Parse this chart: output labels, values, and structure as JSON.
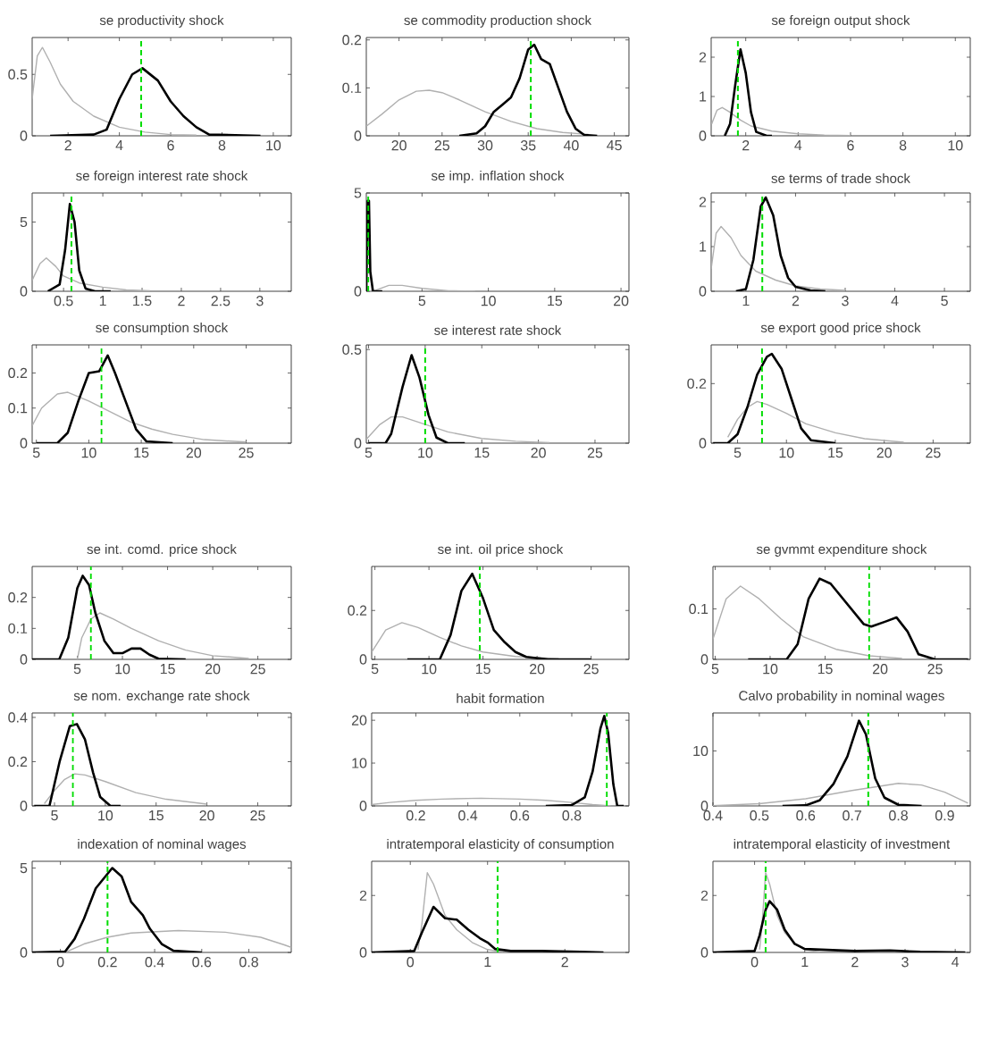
{
  "chart_data": [
    {
      "type": "line",
      "title": "se productivity shock",
      "xlim": [
        0.6,
        10.7
      ],
      "ylim": [
        0,
        0.8
      ],
      "xticks": [
        2,
        4,
        6,
        8,
        10
      ],
      "yticks": [
        0,
        0.5
      ],
      "series": [
        {
          "color": "#b0b0b0",
          "x": [
            0.6,
            0.8,
            1.0,
            1.3,
            1.7,
            2.2,
            3,
            4,
            5,
            6,
            7
          ],
          "values": [
            0.3,
            0.65,
            0.72,
            0.6,
            0.42,
            0.28,
            0.16,
            0.07,
            0.03,
            0.01,
            0.005
          ]
        },
        {
          "color": "#000000",
          "x": [
            1.3,
            3,
            3.5,
            4,
            4.5,
            4.9,
            5.5,
            6,
            6.5,
            7,
            7.5,
            9.5
          ],
          "values": [
            0,
            0.01,
            0.05,
            0.3,
            0.5,
            0.55,
            0.45,
            0.28,
            0.16,
            0.07,
            0.01,
            0
          ]
        }
      ],
      "ref_lines": [
        {
          "axis": "x",
          "value": 4.85,
          "color": "#00dd00",
          "line_style": "dashed"
        }
      ]
    },
    {
      "type": "line",
      "title": "se commodity production shock",
      "xlim": [
        16.2,
        46.7
      ],
      "ylim": [
        0,
        0.205
      ],
      "xticks": [
        20,
        25,
        30,
        35,
        40,
        45
      ],
      "yticks": [
        0,
        0.1,
        0.2
      ],
      "series": [
        {
          "color": "#b0b0b0",
          "x": [
            16.2,
            18,
            20,
            22,
            23.5,
            25,
            27,
            30,
            33,
            36,
            39,
            42
          ],
          "values": [
            0.02,
            0.045,
            0.075,
            0.093,
            0.095,
            0.09,
            0.075,
            0.05,
            0.03,
            0.015,
            0.007,
            0.003
          ]
        },
        {
          "color": "#000000",
          "x": [
            27,
            29,
            30,
            31,
            32,
            33,
            34,
            35,
            35.7,
            36.5,
            37.5,
            38.5,
            39.5,
            40.5,
            41.5,
            43
          ],
          "values": [
            0,
            0.005,
            0.02,
            0.05,
            0.065,
            0.08,
            0.12,
            0.18,
            0.19,
            0.16,
            0.15,
            0.1,
            0.05,
            0.015,
            0.002,
            0
          ]
        }
      ],
      "ref_lines": [
        {
          "axis": "x",
          "value": 35.3,
          "color": "#00dd00",
          "line_style": "dashed"
        }
      ]
    },
    {
      "type": "line",
      "title": "se foreign output shock",
      "xlim": [
        0.68,
        10.57
      ],
      "ylim": [
        0,
        2.5
      ],
      "xticks": [
        2,
        4,
        6,
        8,
        10
      ],
      "yticks": [
        0,
        1,
        2
      ],
      "series": [
        {
          "color": "#b0b0b0",
          "x": [
            0.7,
            0.9,
            1.1,
            1.4,
            1.8,
            2.2,
            3,
            4,
            5,
            6
          ],
          "values": [
            0.3,
            0.65,
            0.72,
            0.6,
            0.4,
            0.25,
            0.12,
            0.05,
            0.02,
            0.005
          ]
        },
        {
          "color": "#000000",
          "x": [
            1.2,
            1.4,
            1.6,
            1.8,
            2.0,
            2.2,
            2.4,
            2.8,
            3
          ],
          "values": [
            0,
            0.3,
            1.3,
            2.2,
            1.6,
            0.6,
            0.1,
            0,
            0
          ]
        }
      ],
      "ref_lines": [
        {
          "axis": "x",
          "value": 1.7,
          "color": "#00dd00",
          "line_style": "dashed"
        }
      ]
    },
    {
      "type": "line",
      "title": "se foreign interest rate shock",
      "xlim": [
        0.1,
        3.4
      ],
      "ylim": [
        0,
        7.1
      ],
      "xticks": [
        0.5,
        1,
        1.5,
        2,
        2.5,
        3
      ],
      "yticks": [
        0,
        5
      ],
      "series": [
        {
          "color": "#b0b0b0",
          "x": [
            0.1,
            0.2,
            0.28,
            0.4,
            0.5,
            0.7,
            1,
            1.3,
            1.6
          ],
          "values": [
            0.8,
            2.0,
            2.4,
            1.8,
            1.1,
            0.6,
            0.3,
            0.1,
            0.03
          ]
        },
        {
          "color": "#000000",
          "x": [
            0.3,
            0.45,
            0.52,
            0.58,
            0.64,
            0.7,
            0.78,
            0.9,
            1.1
          ],
          "values": [
            0,
            0.5,
            3,
            6.3,
            5,
            1.5,
            0.2,
            0,
            0
          ]
        }
      ],
      "ref_lines": [
        {
          "axis": "x",
          "value": 0.6,
          "color": "#00dd00",
          "line_style": "dashed"
        }
      ]
    },
    {
      "type": "line",
      "title": "se imp. inflation shock",
      "xlim": [
        0.8,
        20.6
      ],
      "ylim": [
        0,
        5
      ],
      "xticks": [
        5,
        10,
        15,
        20
      ],
      "yticks": [
        0,
        5
      ],
      "series": [
        {
          "color": "#b0b0b0",
          "x": [
            0.8,
            1.5,
            2.5,
            3.5,
            5,
            7,
            9
          ],
          "values": [
            0,
            0.05,
            0.3,
            0.3,
            0.15,
            0.03,
            0
          ]
        },
        {
          "color": "#000000",
          "x": [
            0.8,
            0.9,
            1.0,
            1.1,
            1.3,
            2
          ],
          "values": [
            0,
            4.6,
            4.6,
            1,
            0,
            0
          ]
        }
      ],
      "ref_lines": [
        {
          "axis": "x",
          "value": 0.95,
          "color": "#00dd00",
          "line_style": "dashed"
        }
      ]
    },
    {
      "type": "line",
      "title": "se terms of trade shock",
      "xlim": [
        0.3,
        5.52
      ],
      "ylim": [
        0,
        2.2
      ],
      "xticks": [
        1,
        2,
        3,
        4,
        5
      ],
      "yticks": [
        0,
        1,
        2
      ],
      "series": [
        {
          "color": "#b0b0b0",
          "x": [
            0.3,
            0.4,
            0.5,
            0.7,
            0.9,
            1.2,
            1.6,
            2,
            2.5,
            3
          ],
          "values": [
            0.5,
            1.3,
            1.45,
            1.2,
            0.8,
            0.45,
            0.25,
            0.12,
            0.05,
            0.02
          ]
        },
        {
          "color": "#000000",
          "x": [
            0.8,
            1.0,
            1.15,
            1.3,
            1.4,
            1.55,
            1.7,
            1.85,
            2,
            2.3,
            2.6
          ],
          "values": [
            0,
            0.05,
            0.7,
            1.9,
            2.1,
            1.7,
            0.8,
            0.3,
            0.1,
            0.02,
            0
          ]
        }
      ],
      "ref_lines": [
        {
          "axis": "x",
          "value": 1.33,
          "color": "#00dd00",
          "line_style": "dashed"
        }
      ]
    },
    {
      "type": "line",
      "title": "se consumption shock",
      "xlim": [
        4.6,
        29.3
      ],
      "ylim": [
        0,
        0.28
      ],
      "xticks": [
        5,
        10,
        15,
        20,
        25
      ],
      "yticks": [
        0,
        0.1,
        0.2
      ],
      "series": [
        {
          "color": "#b0b0b0",
          "x": [
            4.6,
            5.5,
            7,
            8,
            10,
            12,
            14,
            16,
            18,
            21,
            25
          ],
          "values": [
            0.05,
            0.1,
            0.14,
            0.145,
            0.12,
            0.09,
            0.06,
            0.04,
            0.025,
            0.01,
            0.003
          ]
        },
        {
          "color": "#000000",
          "x": [
            5,
            7,
            8,
            9,
            10,
            11,
            11.8,
            12.5,
            13.5,
            14.5,
            15.5,
            18
          ],
          "values": [
            0,
            0,
            0.03,
            0.12,
            0.2,
            0.205,
            0.25,
            0.2,
            0.12,
            0.04,
            0.005,
            0
          ]
        }
      ],
      "ref_lines": [
        {
          "axis": "x",
          "value": 11.2,
          "color": "#00dd00",
          "line_style": "dashed"
        }
      ]
    },
    {
      "type": "line",
      "title": "se interest rate shock",
      "xlim": [
        4.8,
        28
      ],
      "ylim": [
        0,
        0.525
      ],
      "xticks": [
        5,
        10,
        15,
        20,
        25
      ],
      "yticks": [
        0,
        0.5
      ],
      "series": [
        {
          "color": "#b0b0b0",
          "x": [
            4.8,
            6,
            7,
            8,
            10,
            12,
            15,
            18,
            21
          ],
          "values": [
            0.02,
            0.1,
            0.14,
            0.14,
            0.1,
            0.06,
            0.025,
            0.01,
            0.003
          ]
        },
        {
          "color": "#000000",
          "x": [
            5,
            6.5,
            7,
            8,
            8.8,
            9.5,
            10.3,
            11,
            12,
            13.5
          ],
          "values": [
            0,
            0,
            0.05,
            0.3,
            0.47,
            0.35,
            0.15,
            0.03,
            0,
            0
          ]
        }
      ],
      "ref_lines": [
        {
          "axis": "x",
          "value": 10.0,
          "color": "#00dd00",
          "line_style": "dashed"
        }
      ]
    },
    {
      "type": "line",
      "title": "se export good price shock",
      "xlim": [
        2.3,
        28.8
      ],
      "ylim": [
        0,
        0.33
      ],
      "xticks": [
        5,
        10,
        15,
        20,
        25
      ],
      "yticks": [
        0,
        0.2
      ],
      "series": [
        {
          "color": "#b0b0b0",
          "x": [
            4,
            5,
            6,
            7,
            8,
            10,
            12,
            15,
            18,
            22
          ],
          "values": [
            0.02,
            0.08,
            0.12,
            0.14,
            0.13,
            0.1,
            0.065,
            0.035,
            0.015,
            0.003
          ]
        },
        {
          "color": "#000000",
          "x": [
            2.5,
            4,
            5,
            6,
            7,
            8,
            8.5,
            9.5,
            10.5,
            11.5,
            12.5,
            15
          ],
          "values": [
            0,
            0,
            0.03,
            0.12,
            0.23,
            0.29,
            0.3,
            0.25,
            0.15,
            0.05,
            0.01,
            0
          ]
        }
      ],
      "ref_lines": [
        {
          "axis": "x",
          "value": 7.5,
          "color": "#00dd00",
          "line_style": "dashed"
        }
      ]
    },
    {
      "type": "line",
      "title": "se int. comd. price shock",
      "xlim": [
        0,
        28.7
      ],
      "ylim": [
        0,
        0.3
      ],
      "xticks": [
        5,
        10,
        15,
        20,
        25
      ],
      "yticks": [
        0,
        0.1,
        0.2
      ],
      "series": [
        {
          "color": "#b0b0b0",
          "x": [
            5,
            5.5,
            6.5,
            7.5,
            9,
            11,
            14,
            17,
            20,
            24
          ],
          "values": [
            0,
            0.07,
            0.13,
            0.15,
            0.13,
            0.1,
            0.06,
            0.03,
            0.012,
            0.003
          ]
        },
        {
          "color": "#000000",
          "x": [
            0,
            3,
            4,
            5,
            5.6,
            6.3,
            7,
            8,
            9,
            10,
            11,
            12,
            13,
            14,
            17
          ],
          "values": [
            0,
            0,
            0.07,
            0.23,
            0.27,
            0.24,
            0.15,
            0.06,
            0.02,
            0.02,
            0.035,
            0.035,
            0.015,
            0.002,
            0
          ]
        }
      ],
      "ref_lines": [
        {
          "axis": "x",
          "value": 6.5,
          "color": "#00dd00",
          "line_style": "dashed"
        }
      ]
    },
    {
      "type": "line",
      "title": "se int. oil price shock",
      "xlim": [
        4.7,
        28.5
      ],
      "ylim": [
        0,
        0.38
      ],
      "xticks": [
        5,
        10,
        15,
        20,
        25
      ],
      "yticks": [
        0,
        0.2
      ],
      "series": [
        {
          "color": "#b0b0b0",
          "x": [
            4.7,
            6,
            7.5,
            9,
            11,
            13,
            15,
            18,
            22
          ],
          "values": [
            0.03,
            0.12,
            0.15,
            0.13,
            0.09,
            0.055,
            0.03,
            0.012,
            0.003
          ]
        },
        {
          "color": "#000000",
          "x": [
            8,
            11,
            12,
            13,
            14,
            15,
            16,
            17,
            18,
            19,
            21,
            25
          ],
          "values": [
            0,
            0,
            0.1,
            0.28,
            0.35,
            0.25,
            0.12,
            0.07,
            0.03,
            0.01,
            0,
            0
          ]
        }
      ],
      "ref_lines": [
        {
          "axis": "x",
          "value": 14.7,
          "color": "#00dd00",
          "line_style": "dashed"
        }
      ]
    },
    {
      "type": "line",
      "title": "se gvmmt expenditure shock",
      "xlim": [
        4.8,
        28.2
      ],
      "ylim": [
        0,
        0.184
      ],
      "xticks": [
        5,
        10,
        15,
        20,
        25
      ],
      "yticks": [
        0,
        0.1
      ],
      "series": [
        {
          "color": "#b0b0b0",
          "x": [
            4.8,
            6,
            7.3,
            9,
            11,
            13,
            16,
            19,
            22
          ],
          "values": [
            0.04,
            0.12,
            0.145,
            0.12,
            0.08,
            0.045,
            0.02,
            0.007,
            0.002
          ]
        },
        {
          "color": "#000000",
          "x": [
            8,
            11.5,
            12.5,
            13.5,
            14.5,
            15.5,
            17,
            18.5,
            19.2,
            20.5,
            21.5,
            22.5,
            23.5,
            25,
            28
          ],
          "values": [
            0,
            0,
            0.03,
            0.12,
            0.16,
            0.15,
            0.11,
            0.07,
            0.065,
            0.075,
            0.083,
            0.055,
            0.01,
            0,
            0
          ]
        }
      ],
      "ref_lines": [
        {
          "axis": "x",
          "value": 19,
          "color": "#00dd00",
          "line_style": "dashed"
        }
      ]
    },
    {
      "type": "line",
      "title": "se nom. exchange rate shock",
      "xlim": [
        2.8,
        28.3
      ],
      "ylim": [
        0,
        0.42
      ],
      "xticks": [
        5,
        10,
        15,
        20,
        25
      ],
      "yticks": [
        0,
        0.2,
        0.4
      ],
      "series": [
        {
          "color": "#b0b0b0",
          "x": [
            4,
            5,
            6,
            7,
            8,
            10,
            13,
            16,
            20
          ],
          "values": [
            0.01,
            0.07,
            0.12,
            0.145,
            0.14,
            0.11,
            0.06,
            0.03,
            0.008
          ]
        },
        {
          "color": "#000000",
          "x": [
            3,
            4.5,
            5.5,
            6.5,
            7.2,
            8,
            8.8,
            9.5,
            10.5,
            11.5
          ],
          "values": [
            0,
            0,
            0.2,
            0.36,
            0.37,
            0.3,
            0.15,
            0.04,
            0,
            0
          ]
        }
      ],
      "ref_lines": [
        {
          "axis": "x",
          "value": 6.8,
          "color": "#00dd00",
          "line_style": "dashed"
        }
      ]
    },
    {
      "type": "line",
      "title": "habit formation",
      "xlim": [
        0.03,
        1.02
      ],
      "ylim": [
        0,
        21.7
      ],
      "xticks": [
        0.2,
        0.4,
        0.6,
        0.8
      ],
      "yticks": [
        0,
        10,
        20
      ],
      "series": [
        {
          "color": "#b0b0b0",
          "x": [
            0.03,
            0.1,
            0.2,
            0.3,
            0.45,
            0.6,
            0.7,
            0.8,
            0.88,
            0.95
          ],
          "values": [
            0.3,
            0.8,
            1.3,
            1.6,
            1.8,
            1.6,
            1.3,
            0.8,
            0.3,
            0
          ]
        },
        {
          "color": "#000000",
          "x": [
            0.7,
            0.8,
            0.85,
            0.88,
            0.91,
            0.925,
            0.94,
            0.96,
            0.975,
            1.0
          ],
          "values": [
            0,
            0.2,
            2,
            8,
            18,
            21,
            17,
            5,
            0,
            0
          ]
        }
      ],
      "ref_lines": [
        {
          "axis": "x",
          "value": 0.935,
          "color": "#00dd00",
          "line_style": "dashed"
        }
      ]
    },
    {
      "type": "line",
      "title": "Calvo probability in nominal wages",
      "xlim": [
        0.4,
        0.955
      ],
      "ylim": [
        0,
        16.9
      ],
      "xticks": [
        0.4,
        0.5,
        0.6,
        0.7,
        0.8,
        0.9
      ],
      "yticks": [
        0,
        10
      ],
      "series": [
        {
          "color": "#b0b0b0",
          "x": [
            0.4,
            0.5,
            0.6,
            0.7,
            0.8,
            0.85,
            0.9,
            0.95
          ],
          "values": [
            0.05,
            0.4,
            1.3,
            2.8,
            4.1,
            3.8,
            2.5,
            0.5
          ]
        },
        {
          "color": "#000000",
          "x": [
            0.55,
            0.6,
            0.63,
            0.66,
            0.69,
            0.715,
            0.73,
            0.75,
            0.77,
            0.8,
            0.85
          ],
          "values": [
            0,
            0.1,
            1,
            4,
            9,
            15.5,
            13,
            5,
            1.5,
            0.2,
            0
          ]
        }
      ],
      "ref_lines": [
        {
          "axis": "x",
          "value": 0.735,
          "color": "#00dd00",
          "line_style": "dashed"
        }
      ]
    },
    {
      "type": "line",
      "title": "indexation of nominal wages",
      "xlim": [
        -0.12,
        0.98
      ],
      "ylim": [
        0,
        5.4
      ],
      "xticks": [
        0,
        0.2,
        0.4,
        0.6,
        0.8
      ],
      "yticks": [
        0,
        5
      ],
      "series": [
        {
          "color": "#b0b0b0",
          "x": [
            0.02,
            0.1,
            0.2,
            0.3,
            0.5,
            0.7,
            0.85,
            0.95,
            0.98
          ],
          "values": [
            0,
            0.5,
            0.9,
            1.15,
            1.3,
            1.2,
            0.9,
            0.45,
            0.3
          ]
        },
        {
          "color": "#000000",
          "x": [
            -0.12,
            0.02,
            0.06,
            0.1,
            0.15,
            0.22,
            0.26,
            0.3,
            0.35,
            0.38,
            0.43,
            0.48,
            0.6
          ],
          "values": [
            0,
            0.05,
            0.8,
            2,
            3.8,
            5,
            4.5,
            3,
            2.2,
            1.4,
            0.5,
            0.1,
            0
          ]
        }
      ],
      "ref_lines": [
        {
          "axis": "x",
          "value": 0.2,
          "color": "#00dd00",
          "line_style": "dashed"
        }
      ]
    },
    {
      "type": "line",
      "title": "intratemporal elasticity of consumption",
      "xlim": [
        -0.5,
        2.83
      ],
      "ylim": [
        0,
        3.2
      ],
      "xticks": [
        0,
        1,
        2
      ],
      "yticks": [
        0,
        2
      ],
      "series": [
        {
          "color": "#b0b0b0",
          "x": [
            0.1,
            0.15,
            0.22,
            0.3,
            0.45,
            0.6,
            0.8,
            1.0,
            1.2
          ],
          "values": [
            0.1,
            1,
            2.8,
            2.4,
            1.3,
            0.8,
            0.35,
            0.1,
            0.02
          ]
        },
        {
          "color": "#000000",
          "x": [
            -0.5,
            0.05,
            0.15,
            0.3,
            0.45,
            0.6,
            0.75,
            0.9,
            1.0,
            1.1,
            1.3,
            1.7,
            2.2,
            2.5
          ],
          "values": [
            0,
            0.05,
            0.7,
            1.6,
            1.2,
            1.15,
            0.8,
            0.5,
            0.35,
            0.12,
            0.05,
            0.05,
            0.02,
            0
          ]
        }
      ],
      "ref_lines": [
        {
          "axis": "x",
          "value": 1.13,
          "color": "#00dd00",
          "line_style": "dashed"
        }
      ]
    },
    {
      "type": "line",
      "title": "intratemporal elasticity of investment",
      "xlim": [
        -0.83,
        4.3
      ],
      "ylim": [
        0,
        3.2
      ],
      "xticks": [
        0,
        1,
        2,
        3,
        4
      ],
      "yticks": [
        0,
        2
      ],
      "series": [
        {
          "color": "#b0b0b0",
          "x": [
            0.1,
            0.15,
            0.22,
            0.3,
            0.45,
            0.6,
            0.8,
            1.0,
            1.3
          ],
          "values": [
            0.1,
            1,
            2.8,
            2.4,
            1.3,
            0.7,
            0.3,
            0.1,
            0.02
          ]
        },
        {
          "color": "#000000",
          "x": [
            -0.83,
            0,
            0.1,
            0.22,
            0.3,
            0.45,
            0.6,
            0.8,
            1,
            2,
            2.7,
            3.3,
            4.2
          ],
          "values": [
            0,
            0.05,
            0.6,
            1.5,
            1.8,
            1.5,
            0.8,
            0.3,
            0.12,
            0.05,
            0.07,
            0.02,
            0
          ]
        }
      ],
      "ref_lines": [
        {
          "axis": "x",
          "value": 0.22,
          "color": "#00dd00",
          "line_style": "dashed"
        }
      ]
    }
  ]
}
